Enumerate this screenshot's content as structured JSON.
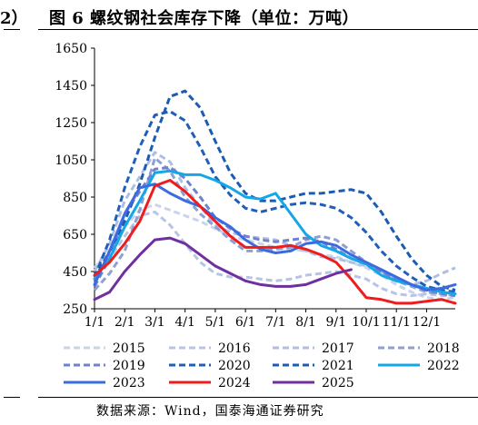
{
  "header": {
    "left_fragment": "2）",
    "title": "图 6 螺纹钢社会库存下降（单位：万吨）"
  },
  "footer": {
    "source": "数据来源：Wind，国泰海通证券研究"
  },
  "chart_data": {
    "type": "line",
    "title": "图 6 螺纹钢社会库存下降（单位：万吨）",
    "xlabel": "",
    "ylabel": "",
    "ylim": [
      250,
      1650
    ],
    "yticks": [
      "250",
      "450",
      "650",
      "850",
      "1050",
      "1250",
      "1450",
      "1650"
    ],
    "xlim": [
      1,
      12.95
    ],
    "xticks": [
      "1/1",
      "2/1",
      "3/1",
      "4/1",
      "5/1",
      "6/1",
      "7/1",
      "8/1",
      "9/1",
      "10/1",
      "11/1",
      "12/1"
    ],
    "grid": false,
    "legend_position": "bottom",
    "series": [
      {
        "name": "2015",
        "color": "#c9d4ea",
        "dash": "dashed",
        "points": [
          [
            1.0,
            470
          ],
          [
            1.5,
            560
          ],
          [
            2.0,
            690
          ],
          [
            2.5,
            780
          ],
          [
            3.0,
            810
          ],
          [
            3.5,
            780
          ],
          [
            4.0,
            750
          ],
          [
            4.5,
            720
          ],
          [
            5.0,
            680
          ],
          [
            5.5,
            640
          ],
          [
            6.0,
            620
          ],
          [
            6.5,
            600
          ],
          [
            7.0,
            580
          ],
          [
            7.5,
            570
          ],
          [
            8.0,
            560
          ],
          [
            8.5,
            540
          ],
          [
            9.0,
            530
          ],
          [
            9.5,
            500
          ],
          [
            10.0,
            470
          ],
          [
            10.5,
            430
          ],
          [
            11.0,
            380
          ],
          [
            11.5,
            340
          ],
          [
            12.0,
            310
          ],
          [
            12.5,
            300
          ],
          [
            12.95,
            310
          ]
        ]
      },
      {
        "name": "2016",
        "color": "#b8c4e6",
        "dash": "dashed",
        "points": [
          [
            1.0,
            420
          ],
          [
            1.5,
            520
          ],
          [
            2.0,
            640
          ],
          [
            2.5,
            750
          ],
          [
            3.0,
            770
          ],
          [
            3.5,
            700
          ],
          [
            4.0,
            600
          ],
          [
            4.5,
            500
          ],
          [
            5.0,
            440
          ],
          [
            5.5,
            420
          ],
          [
            6.0,
            420
          ],
          [
            6.5,
            410
          ],
          [
            7.0,
            400
          ],
          [
            7.5,
            410
          ],
          [
            8.0,
            430
          ],
          [
            8.5,
            440
          ],
          [
            9.0,
            450
          ],
          [
            9.5,
            430
          ],
          [
            10.0,
            410
          ],
          [
            10.5,
            360
          ],
          [
            11.0,
            330
          ],
          [
            11.5,
            320
          ],
          [
            12.0,
            330
          ],
          [
            12.5,
            320
          ],
          [
            12.95,
            320
          ]
        ]
      },
      {
        "name": "2017",
        "color": "#aebee4",
        "dash": "dashed",
        "points": [
          [
            1.0,
            450
          ],
          [
            1.5,
            600
          ],
          [
            2.0,
            830
          ],
          [
            2.5,
            960
          ],
          [
            3.0,
            1090
          ],
          [
            3.5,
            1040
          ],
          [
            4.0,
            900
          ],
          [
            4.5,
            800
          ],
          [
            5.0,
            700
          ],
          [
            5.5,
            660
          ],
          [
            6.0,
            640
          ],
          [
            6.5,
            630
          ],
          [
            7.0,
            620
          ],
          [
            7.5,
            590
          ],
          [
            8.0,
            560
          ],
          [
            8.5,
            530
          ],
          [
            9.0,
            520
          ],
          [
            9.5,
            500
          ],
          [
            10.0,
            480
          ],
          [
            10.5,
            450
          ],
          [
            11.0,
            410
          ],
          [
            11.5,
            380
          ],
          [
            12.0,
            400
          ],
          [
            12.5,
            440
          ],
          [
            12.95,
            470
          ]
        ]
      },
      {
        "name": "2018",
        "color": "#8f9fd2",
        "dash": "dashed",
        "points": [
          [
            1.0,
            350
          ],
          [
            1.5,
            440
          ],
          [
            2.0,
            560
          ],
          [
            2.5,
            780
          ],
          [
            3.0,
            1060
          ],
          [
            3.5,
            990
          ],
          [
            4.0,
            850
          ],
          [
            4.5,
            760
          ],
          [
            5.0,
            690
          ],
          [
            5.5,
            620
          ],
          [
            6.0,
            560
          ],
          [
            6.5,
            560
          ],
          [
            7.0,
            570
          ],
          [
            7.5,
            580
          ],
          [
            8.0,
            620
          ],
          [
            8.5,
            640
          ],
          [
            9.0,
            620
          ],
          [
            9.5,
            560
          ],
          [
            10.0,
            500
          ],
          [
            10.5,
            450
          ],
          [
            11.0,
            400
          ],
          [
            11.5,
            370
          ],
          [
            12.0,
            340
          ],
          [
            12.5,
            330
          ],
          [
            12.95,
            320
          ]
        ]
      },
      {
        "name": "2019",
        "color": "#6f82cc",
        "dash": "dashed",
        "points": [
          [
            1.0,
            370
          ],
          [
            1.5,
            520
          ],
          [
            2.0,
            760
          ],
          [
            2.5,
            880
          ],
          [
            3.0,
            1000
          ],
          [
            3.5,
            1010
          ],
          [
            4.0,
            950
          ],
          [
            4.5,
            850
          ],
          [
            5.0,
            740
          ],
          [
            5.5,
            680
          ],
          [
            6.0,
            640
          ],
          [
            6.5,
            620
          ],
          [
            7.0,
            610
          ],
          [
            7.5,
            620
          ],
          [
            8.0,
            630
          ],
          [
            8.5,
            610
          ],
          [
            9.0,
            570
          ],
          [
            9.5,
            520
          ],
          [
            10.0,
            490
          ],
          [
            10.5,
            450
          ],
          [
            11.0,
            410
          ],
          [
            11.5,
            380
          ],
          [
            12.0,
            350
          ],
          [
            12.5,
            330
          ],
          [
            12.95,
            320
          ]
        ]
      },
      {
        "name": "2020",
        "color": "#1f5fb8",
        "dash": "dashed",
        "points": [
          [
            1.0,
            420
          ],
          [
            1.5,
            620
          ],
          [
            2.0,
            900
          ],
          [
            2.5,
            1120
          ],
          [
            3.0,
            1290
          ],
          [
            3.5,
            1310
          ],
          [
            4.0,
            1260
          ],
          [
            4.5,
            1120
          ],
          [
            5.0,
            960
          ],
          [
            5.5,
            860
          ],
          [
            6.0,
            790
          ],
          [
            6.5,
            770
          ],
          [
            7.0,
            790
          ],
          [
            7.5,
            810
          ],
          [
            8.0,
            820
          ],
          [
            8.5,
            810
          ],
          [
            9.0,
            790
          ],
          [
            9.5,
            740
          ],
          [
            10.0,
            660
          ],
          [
            10.5,
            560
          ],
          [
            11.0,
            480
          ],
          [
            11.5,
            420
          ],
          [
            12.0,
            370
          ],
          [
            12.5,
            350
          ],
          [
            12.95,
            340
          ]
        ]
      },
      {
        "name": "2021",
        "color": "#1a5cb4",
        "dash": "dashed",
        "points": [
          [
            1.0,
            410
          ],
          [
            1.5,
            560
          ],
          [
            2.0,
            720
          ],
          [
            2.5,
            920
          ],
          [
            3.0,
            1170
          ],
          [
            3.5,
            1390
          ],
          [
            4.0,
            1420
          ],
          [
            4.5,
            1330
          ],
          [
            5.0,
            1150
          ],
          [
            5.5,
            980
          ],
          [
            6.0,
            870
          ],
          [
            6.5,
            830
          ],
          [
            7.0,
            830
          ],
          [
            7.5,
            850
          ],
          [
            8.0,
            870
          ],
          [
            8.5,
            870
          ],
          [
            9.0,
            880
          ],
          [
            9.5,
            890
          ],
          [
            10.0,
            870
          ],
          [
            10.5,
            770
          ],
          [
            11.0,
            640
          ],
          [
            11.5,
            520
          ],
          [
            12.0,
            430
          ],
          [
            12.5,
            370
          ],
          [
            12.95,
            350
          ]
        ]
      },
      {
        "name": "2022",
        "color": "#14a7e8",
        "dash": "solid",
        "points": [
          [
            1.0,
            410
          ],
          [
            1.5,
            520
          ],
          [
            2.0,
            690
          ],
          [
            2.5,
            830
          ],
          [
            3.0,
            980
          ],
          [
            3.5,
            990
          ],
          [
            4.0,
            970
          ],
          [
            4.5,
            970
          ],
          [
            5.0,
            940
          ],
          [
            5.5,
            900
          ],
          [
            6.0,
            850
          ],
          [
            6.5,
            840
          ],
          [
            7.0,
            870
          ],
          [
            7.5,
            760
          ],
          [
            8.0,
            650
          ],
          [
            8.5,
            590
          ],
          [
            9.0,
            560
          ],
          [
            9.5,
            520
          ],
          [
            10.0,
            490
          ],
          [
            10.5,
            430
          ],
          [
            11.0,
            400
          ],
          [
            11.5,
            380
          ],
          [
            12.0,
            360
          ],
          [
            12.5,
            340
          ],
          [
            12.95,
            330
          ]
        ]
      },
      {
        "name": "2023",
        "color": "#3c6be0",
        "dash": "solid",
        "points": [
          [
            1.0,
            380
          ],
          [
            1.5,
            560
          ],
          [
            2.0,
            760
          ],
          [
            2.5,
            900
          ],
          [
            3.0,
            920
          ],
          [
            3.5,
            870
          ],
          [
            4.0,
            830
          ],
          [
            4.5,
            800
          ],
          [
            5.0,
            740
          ],
          [
            5.5,
            690
          ],
          [
            6.0,
            620
          ],
          [
            6.5,
            570
          ],
          [
            7.0,
            550
          ],
          [
            7.5,
            560
          ],
          [
            8.0,
            600
          ],
          [
            8.5,
            610
          ],
          [
            9.0,
            590
          ],
          [
            9.5,
            540
          ],
          [
            10.0,
            500
          ],
          [
            10.5,
            460
          ],
          [
            11.0,
            420
          ],
          [
            11.5,
            380
          ],
          [
            12.0,
            350
          ],
          [
            12.5,
            360
          ],
          [
            12.95,
            380
          ]
        ]
      },
      {
        "name": "2024",
        "color": "#ee1c1c",
        "dash": "solid",
        "points": [
          [
            1.0,
            430
          ],
          [
            1.5,
            500
          ],
          [
            2.0,
            600
          ],
          [
            2.5,
            720
          ],
          [
            3.0,
            910
          ],
          [
            3.5,
            940
          ],
          [
            4.0,
            880
          ],
          [
            4.5,
            800
          ],
          [
            5.0,
            720
          ],
          [
            5.5,
            640
          ],
          [
            6.0,
            580
          ],
          [
            6.5,
            580
          ],
          [
            7.0,
            580
          ],
          [
            7.5,
            590
          ],
          [
            8.0,
            570
          ],
          [
            8.5,
            540
          ],
          [
            9.0,
            500
          ],
          [
            9.5,
            410
          ],
          [
            10.0,
            310
          ],
          [
            10.5,
            300
          ],
          [
            11.0,
            280
          ],
          [
            11.5,
            280
          ],
          [
            12.0,
            290
          ],
          [
            12.5,
            300
          ],
          [
            12.95,
            280
          ]
        ]
      },
      {
        "name": "2025",
        "color": "#6f2f9f",
        "dash": "solid",
        "points": [
          [
            1.0,
            300
          ],
          [
            1.5,
            340
          ],
          [
            2.0,
            450
          ],
          [
            2.5,
            540
          ],
          [
            3.0,
            620
          ],
          [
            3.5,
            630
          ],
          [
            4.0,
            600
          ],
          [
            4.5,
            540
          ],
          [
            5.0,
            480
          ],
          [
            5.5,
            440
          ],
          [
            6.0,
            400
          ],
          [
            6.5,
            380
          ],
          [
            7.0,
            370
          ],
          [
            7.5,
            370
          ],
          [
            8.0,
            380
          ],
          [
            8.5,
            410
          ],
          [
            9.0,
            440
          ],
          [
            9.5,
            460
          ]
        ]
      }
    ]
  }
}
